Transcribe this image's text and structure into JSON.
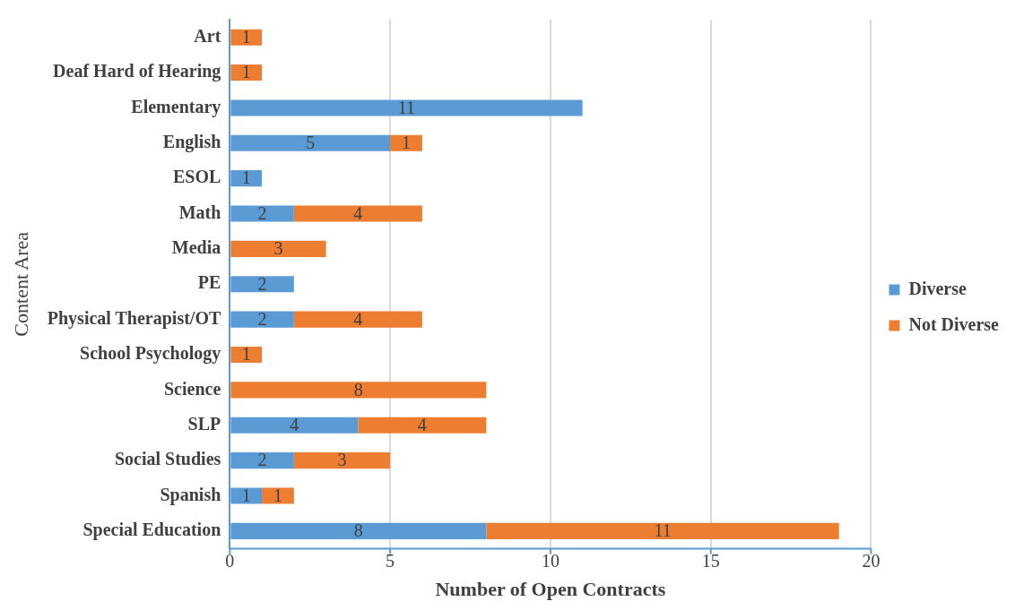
{
  "chart_data": {
    "type": "bar",
    "orientation": "horizontal",
    "stacked": true,
    "xlabel": "Number of Open Contracts",
    "ylabel": "Content Area",
    "categories": [
      "Art",
      "Deaf Hard of Hearing",
      "Elementary",
      "English",
      "ESOL",
      "Math",
      "Media",
      "PE",
      "Physical Therapist/OT",
      "School Psychology",
      "Science",
      "SLP",
      "Social Studies",
      "Spanish",
      "Special Education"
    ],
    "series": [
      {
        "name": "Diverse",
        "color": "#5b9bd5",
        "values": [
          null,
          null,
          11,
          5,
          1,
          2,
          null,
          2,
          2,
          null,
          null,
          4,
          2,
          1,
          8
        ]
      },
      {
        "name": "Not Diverse",
        "color": "#ed7d31",
        "values": [
          1,
          1,
          null,
          1,
          null,
          4,
          3,
          null,
          4,
          1,
          8,
          4,
          3,
          1,
          11
        ]
      }
    ],
    "xlim": [
      0,
      20
    ],
    "xticks": [
      0,
      5,
      10,
      15,
      20
    ],
    "grid": "x",
    "legend": "right",
    "data_labels": true
  }
}
